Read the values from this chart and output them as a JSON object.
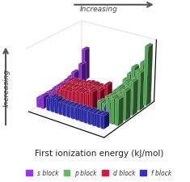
{
  "title": "First ionization energy (kJ/mol)",
  "arrow_label": "Increasing",
  "y_arrow_label": "Increasing",
  "colors": {
    "s_block": "#9B30FF",
    "p_block": "#5DBB5D",
    "d_block": "#E0143C",
    "f_block": "#3030CC"
  },
  "legend": [
    {
      "label": "s block",
      "color": "#9B30FF"
    },
    {
      "label": "p block",
      "color": "#5DBB5D"
    },
    {
      "label": "d block",
      "color": "#E0143C"
    },
    {
      "label": "f block",
      "color": "#3030CC"
    }
  ],
  "background_color": "#ffffff",
  "elements": {
    "s_block": [
      {
        "period": 1,
        "group": 1,
        "ie": 1312
      },
      {
        "period": 2,
        "group": 1,
        "ie": 520
      },
      {
        "period": 2,
        "group": 2,
        "ie": 900
      },
      {
        "period": 3,
        "group": 1,
        "ie": 496
      },
      {
        "period": 3,
        "group": 2,
        "ie": 738
      },
      {
        "period": 4,
        "group": 1,
        "ie": 419
      },
      {
        "period": 4,
        "group": 2,
        "ie": 590
      },
      {
        "period": 5,
        "group": 1,
        "ie": 403
      },
      {
        "period": 5,
        "group": 2,
        "ie": 550
      },
      {
        "period": 6,
        "group": 1,
        "ie": 376
      },
      {
        "period": 6,
        "group": 2,
        "ie": 503
      },
      {
        "period": 7,
        "group": 1,
        "ie": 380
      },
      {
        "period": 7,
        "group": 2,
        "ie": 509
      }
    ],
    "p_block": [
      {
        "period": 2,
        "group": 13,
        "ie": 800
      },
      {
        "period": 2,
        "group": 14,
        "ie": 1086
      },
      {
        "period": 2,
        "group": 15,
        "ie": 1402
      },
      {
        "period": 2,
        "group": 16,
        "ie": 1314
      },
      {
        "period": 2,
        "group": 17,
        "ie": 1681
      },
      {
        "period": 2,
        "group": 18,
        "ie": 2372
      },
      {
        "period": 3,
        "group": 13,
        "ie": 578
      },
      {
        "period": 3,
        "group": 14,
        "ie": 786
      },
      {
        "period": 3,
        "group": 15,
        "ie": 1012
      },
      {
        "period": 3,
        "group": 16,
        "ie": 1000
      },
      {
        "period": 3,
        "group": 17,
        "ie": 1251
      },
      {
        "period": 3,
        "group": 18,
        "ie": 1521
      },
      {
        "period": 4,
        "group": 13,
        "ie": 579
      },
      {
        "period": 4,
        "group": 14,
        "ie": 762
      },
      {
        "period": 4,
        "group": 15,
        "ie": 947
      },
      {
        "period": 4,
        "group": 16,
        "ie": 941
      },
      {
        "period": 4,
        "group": 17,
        "ie": 1140
      },
      {
        "period": 4,
        "group": 18,
        "ie": 1351
      },
      {
        "period": 5,
        "group": 13,
        "ie": 558
      },
      {
        "period": 5,
        "group": 14,
        "ie": 709
      },
      {
        "period": 5,
        "group": 15,
        "ie": 834
      },
      {
        "period": 5,
        "group": 16,
        "ie": 869
      },
      {
        "period": 5,
        "group": 17,
        "ie": 1008
      },
      {
        "period": 5,
        "group": 18,
        "ie": 1170
      },
      {
        "period": 6,
        "group": 13,
        "ie": 589
      },
      {
        "period": 6,
        "group": 14,
        "ie": 716
      },
      {
        "period": 6,
        "group": 15,
        "ie": 703
      },
      {
        "period": 6,
        "group": 16,
        "ie": 812
      },
      {
        "period": 6,
        "group": 17,
        "ie": 1037
      },
      {
        "period": 6,
        "group": 18,
        "ie": 1037
      }
    ],
    "d_block": [
      {
        "period": 4,
        "group": 3,
        "ie": 631
      },
      {
        "period": 4,
        "group": 4,
        "ie": 658
      },
      {
        "period": 4,
        "group": 5,
        "ie": 650
      },
      {
        "period": 4,
        "group": 6,
        "ie": 653
      },
      {
        "period": 4,
        "group": 7,
        "ie": 717
      },
      {
        "period": 4,
        "group": 8,
        "ie": 762
      },
      {
        "period": 4,
        "group": 9,
        "ie": 760
      },
      {
        "period": 4,
        "group": 10,
        "ie": 737
      },
      {
        "period": 4,
        "group": 11,
        "ie": 745
      },
      {
        "period": 4,
        "group": 12,
        "ie": 906
      },
      {
        "period": 5,
        "group": 3,
        "ie": 616
      },
      {
        "period": 5,
        "group": 4,
        "ie": 660
      },
      {
        "period": 5,
        "group": 5,
        "ie": 664
      },
      {
        "period": 5,
        "group": 6,
        "ie": 685
      },
      {
        "period": 5,
        "group": 7,
        "ie": 702
      },
      {
        "period": 5,
        "group": 8,
        "ie": 711
      },
      {
        "period": 5,
        "group": 9,
        "ie": 720
      },
      {
        "period": 5,
        "group": 10,
        "ie": 804
      },
      {
        "period": 5,
        "group": 11,
        "ie": 731
      },
      {
        "period": 5,
        "group": 12,
        "ie": 868
      },
      {
        "period": 6,
        "group": 3,
        "ie": 523
      },
      {
        "period": 6,
        "group": 4,
        "ie": 658
      },
      {
        "period": 6,
        "group": 5,
        "ie": 761
      },
      {
        "period": 6,
        "group": 6,
        "ie": 770
      },
      {
        "period": 6,
        "group": 7,
        "ie": 760
      },
      {
        "period": 6,
        "group": 8,
        "ie": 840
      },
      {
        "period": 6,
        "group": 9,
        "ie": 880
      },
      {
        "period": 6,
        "group": 10,
        "ie": 870
      },
      {
        "period": 6,
        "group": 11,
        "ie": 890
      },
      {
        "period": 6,
        "group": 12,
        "ie": 1007
      }
    ],
    "f_block": [
      {
        "period": 6,
        "group": 3.5,
        "ie": 541
      },
      {
        "period": 6,
        "group": 4.5,
        "ie": 527
      },
      {
        "period": 6,
        "group": 5.5,
        "ie": 533
      },
      {
        "period": 6,
        "group": 6.5,
        "ie": 540
      },
      {
        "period": 6,
        "group": 7.5,
        "ie": 544
      },
      {
        "period": 6,
        "group": 8.5,
        "ie": 547
      },
      {
        "period": 6,
        "group": 9.5,
        "ie": 593
      },
      {
        "period": 6,
        "group": 10.5,
        "ie": 565
      },
      {
        "period": 6,
        "group": 11.5,
        "ie": 573
      },
      {
        "period": 6,
        "group": 12.5,
        "ie": 581
      },
      {
        "period": 6,
        "group": 13.5,
        "ie": 589
      },
      {
        "period": 6,
        "group": 14.5,
        "ie": 596
      },
      {
        "period": 6,
        "group": 15.5,
        "ie": 603
      },
      {
        "period": 6,
        "group": 16.5,
        "ie": 523
      },
      {
        "period": 7,
        "group": 3.5,
        "ie": 497
      },
      {
        "period": 7,
        "group": 4.5,
        "ie": 587
      },
      {
        "period": 7,
        "group": 5.5,
        "ie": 568
      },
      {
        "period": 7,
        "group": 6.5,
        "ie": 499
      },
      {
        "period": 7,
        "group": 7.5,
        "ie": 493
      },
      {
        "period": 7,
        "group": 8.5,
        "ie": 489
      },
      {
        "period": 7,
        "group": 9.5,
        "ie": 498
      },
      {
        "period": 7,
        "group": 10.5,
        "ie": 503
      },
      {
        "period": 7,
        "group": 11.5,
        "ie": 509
      },
      {
        "period": 7,
        "group": 12.5,
        "ie": 514
      },
      {
        "period": 7,
        "group": 13.5,
        "ie": 514
      },
      {
        "period": 7,
        "group": 14.5,
        "ie": 507
      },
      {
        "period": 7,
        "group": 15.5,
        "ie": 520
      },
      {
        "period": 7,
        "group": 16.5,
        "ie": 530
      }
    ]
  }
}
